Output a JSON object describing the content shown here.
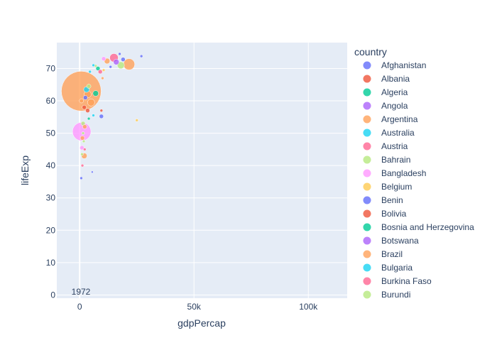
{
  "chart_data": {
    "type": "scatter",
    "xlabel": "gdpPercap",
    "ylabel": "lifeExp",
    "xlim": [
      -10000,
      117000
    ],
    "ylim": [
      -1,
      78
    ],
    "x_ticks": [
      0,
      50000,
      100000
    ],
    "x_tick_labels": [
      "0",
      "50k",
      "100k"
    ],
    "y_ticks": [
      0,
      10,
      20,
      30,
      40,
      50,
      60,
      70
    ],
    "y_tick_labels": [
      "0",
      "10",
      "20",
      "30",
      "40",
      "50",
      "60",
      "70"
    ],
    "grid": true,
    "frame_label": "1972",
    "legend": {
      "title": "country",
      "placement": "right",
      "entries": [
        {
          "name": "Afghanistan",
          "color": "#636efa"
        },
        {
          "name": "Albania",
          "color": "#EF553B"
        },
        {
          "name": "Algeria",
          "color": "#00cc96"
        },
        {
          "name": "Angola",
          "color": "#ab63fa"
        },
        {
          "name": "Argentina",
          "color": "#FFA15A"
        },
        {
          "name": "Australia",
          "color": "#19d3f3"
        },
        {
          "name": "Austria",
          "color": "#FF6692"
        },
        {
          "name": "Bahrain",
          "color": "#B6E880"
        },
        {
          "name": "Bangladesh",
          "color": "#FF97FF"
        },
        {
          "name": "Belgium",
          "color": "#FECB52"
        },
        {
          "name": "Benin",
          "color": "#636efa"
        },
        {
          "name": "Bolivia",
          "color": "#EF553B"
        },
        {
          "name": "Bosnia and Herzegovina",
          "color": "#00cc96"
        },
        {
          "name": "Botswana",
          "color": "#ab63fa"
        },
        {
          "name": "Brazil",
          "color": "#FFA15A"
        },
        {
          "name": "Bulgaria",
          "color": "#19d3f3"
        },
        {
          "name": "Burkina Faso",
          "color": "#FF6692"
        },
        {
          "name": "Burundi",
          "color": "#B6E880"
        }
      ]
    },
    "points": [
      {
        "x": 700,
        "y": 63.0,
        "size": 28,
        "color": "#FFA15A"
      },
      {
        "x": 900,
        "y": 50.5,
        "size": 13,
        "color": "#FF97FF"
      },
      {
        "x": 21600,
        "y": 71.3,
        "size": 8,
        "color": "#FFA15A"
      },
      {
        "x": 15000,
        "y": 73.3,
        "size": 6,
        "color": "#FF6692"
      },
      {
        "x": 16000,
        "y": 72.0,
        "size": 4,
        "color": "#ab63fa"
      },
      {
        "x": 18000,
        "y": 71.0,
        "size": 5,
        "color": "#B6E880"
      },
      {
        "x": 12000,
        "y": 72.3,
        "size": 4,
        "color": "#FFA15A"
      },
      {
        "x": 19000,
        "y": 72.8,
        "size": 3,
        "color": "#636efa"
      },
      {
        "x": 10500,
        "y": 73.0,
        "size": 3,
        "color": "#FF97FF"
      },
      {
        "x": 13500,
        "y": 70.5,
        "size": 2,
        "color": "#636efa"
      },
      {
        "x": 17500,
        "y": 74.5,
        "size": 2,
        "color": "#636efa"
      },
      {
        "x": 27000,
        "y": 73.8,
        "size": 2,
        "color": "#636efa"
      },
      {
        "x": 8000,
        "y": 70.0,
        "size": 3,
        "color": "#00cc96"
      },
      {
        "x": 9000,
        "y": 69.0,
        "size": 3,
        "color": "#FF6692"
      },
      {
        "x": 7000,
        "y": 70.8,
        "size": 2,
        "color": "#B6E880"
      },
      {
        "x": 6000,
        "y": 71.0,
        "size": 2,
        "color": "#19d3f3"
      },
      {
        "x": 4500,
        "y": 69.0,
        "size": 2,
        "color": "#19d3f3"
      },
      {
        "x": 10000,
        "y": 67.0,
        "size": 2,
        "color": "#FFA15A"
      },
      {
        "x": 10500,
        "y": 69.5,
        "size": 2,
        "color": "#FECB52"
      },
      {
        "x": 7000,
        "y": 62.3,
        "size": 4,
        "color": "#00cc96"
      },
      {
        "x": 5000,
        "y": 59.5,
        "size": 5,
        "color": "#FFA15A"
      },
      {
        "x": 3500,
        "y": 62.0,
        "size": 5,
        "color": "#FFA15A"
      },
      {
        "x": 3000,
        "y": 63.5,
        "size": 4,
        "color": "#19d3f3"
      },
      {
        "x": 2500,
        "y": 61.0,
        "size": 3,
        "color": "#636efa"
      },
      {
        "x": 4000,
        "y": 64.5,
        "size": 3,
        "color": "#B6E880"
      },
      {
        "x": 2000,
        "y": 58.0,
        "size": 3,
        "color": "#EF553B"
      },
      {
        "x": 3500,
        "y": 57.0,
        "size": 3,
        "color": "#EF553B"
      },
      {
        "x": 9500,
        "y": 55.2,
        "size": 3,
        "color": "#636efa"
      },
      {
        "x": 9500,
        "y": 57.0,
        "size": 2,
        "color": "#EF553B"
      },
      {
        "x": 6000,
        "y": 55.5,
        "size": 2,
        "color": "#19d3f3"
      },
      {
        "x": 4000,
        "y": 54.5,
        "size": 2,
        "color": "#00cc96"
      },
      {
        "x": 25000,
        "y": 54.0,
        "size": 2,
        "color": "#FECB52"
      },
      {
        "x": 1500,
        "y": 53.0,
        "size": 3,
        "color": "#B6E880"
      },
      {
        "x": 2200,
        "y": 52.0,
        "size": 3,
        "color": "#FFA15A"
      },
      {
        "x": 1200,
        "y": 48.5,
        "size": 3,
        "color": "#FFA15A"
      },
      {
        "x": 1800,
        "y": 47.5,
        "size": 2,
        "color": "#B6E880"
      },
      {
        "x": 1000,
        "y": 45.5,
        "size": 3,
        "color": "#FF97FF"
      },
      {
        "x": 2200,
        "y": 45.0,
        "size": 2,
        "color": "#FF6692"
      },
      {
        "x": 2000,
        "y": 43.0,
        "size": 4,
        "color": "#FFA15A"
      },
      {
        "x": 1000,
        "y": 43.5,
        "size": 2,
        "color": "#B6E880"
      },
      {
        "x": 1200,
        "y": 40.0,
        "size": 2,
        "color": "#FF6692"
      },
      {
        "x": 700,
        "y": 36.1,
        "size": 2,
        "color": "#636efa"
      },
      {
        "x": 5500,
        "y": 38.0,
        "size": 1.5,
        "color": "#636efa"
      },
      {
        "x": 1500,
        "y": 50.0,
        "size": 2,
        "color": "#B6E880"
      },
      {
        "x": 800,
        "y": 60.0,
        "size": 3,
        "color": "#FFA15A"
      }
    ]
  }
}
